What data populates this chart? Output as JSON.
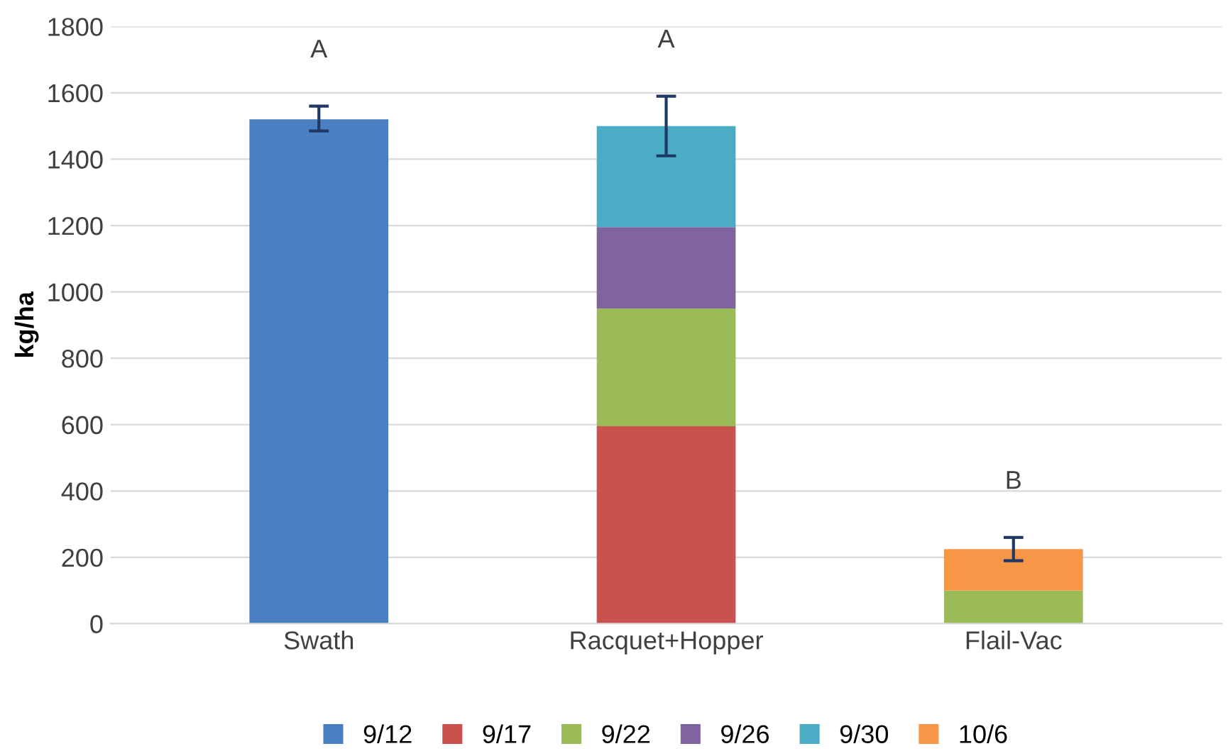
{
  "chart_data": {
    "type": "bar",
    "stacked": true,
    "ylabel": "kg/ha",
    "categories": [
      "Swath",
      "Racquet+Hopper",
      "Flail-Vac"
    ],
    "series": [
      {
        "name": "9/12",
        "color": "#4a7fc1",
        "values": [
          1520,
          null,
          null
        ],
        "errors": [
          [
            1485,
            1560
          ],
          null,
          null
        ]
      },
      {
        "name": "9/17",
        "color": "#c9514e",
        "values": [
          null,
          595,
          null
        ]
      },
      {
        "name": "9/22",
        "color": "#9bbb59",
        "values": [
          null,
          355,
          100
        ]
      },
      {
        "name": "9/26",
        "color": "#8064a2",
        "values": [
          null,
          245,
          null
        ]
      },
      {
        "name": "9/30",
        "color": "#4bacc6",
        "values": [
          null,
          305,
          null
        ],
        "errors": [
          null,
          [
            1410,
            1590
          ],
          null
        ]
      },
      {
        "name": "10/6",
        "color": "#f79646",
        "values": [
          null,
          null,
          125
        ],
        "errors": [
          null,
          null,
          [
            190,
            260
          ]
        ]
      }
    ],
    "annotations": [
      "A",
      "A",
      "B"
    ],
    "ylim": [
      0,
      1800
    ],
    "yticks": [
      0,
      200,
      400,
      600,
      800,
      1000,
      1200,
      1400,
      1600,
      1800
    ],
    "grid": "y",
    "legend": "bottom"
  }
}
